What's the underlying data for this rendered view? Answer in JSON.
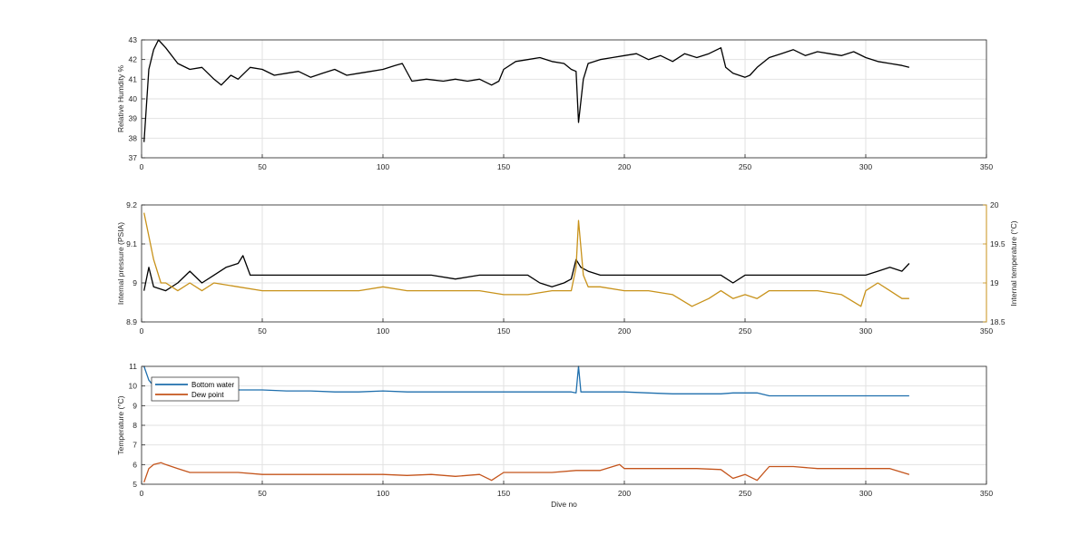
{
  "figure": {
    "xlabel": "Dive no",
    "xlim": [
      0,
      350
    ],
    "xticks": [
      0,
      50,
      100,
      150,
      200,
      250,
      300,
      350
    ]
  },
  "colors": {
    "black": "#000000",
    "gold": "#c8921a",
    "blue": "#1f6fad",
    "orange": "#c4541b",
    "grid": "#e2e2e2",
    "axis": "#262626"
  },
  "chart_data": [
    {
      "type": "line",
      "ylabel": "Relative Humdity %",
      "xlim": [
        0,
        350
      ],
      "ylim": [
        37,
        43
      ],
      "yticks": [
        37,
        38,
        39,
        40,
        41,
        42,
        43
      ],
      "grid": true,
      "series": [
        {
          "color": "#000000",
          "x": [
            1,
            3,
            5,
            7,
            10,
            15,
            20,
            25,
            30,
            33,
            37,
            40,
            45,
            50,
            55,
            60,
            65,
            70,
            75,
            80,
            85,
            90,
            95,
            100,
            105,
            108,
            112,
            118,
            125,
            130,
            135,
            140,
            145,
            148,
            150,
            155,
            160,
            165,
            170,
            175,
            178,
            180,
            181,
            183,
            185,
            190,
            195,
            200,
            205,
            210,
            215,
            220,
            225,
            230,
            235,
            240,
            242,
            245,
            250,
            252,
            255,
            260,
            265,
            270,
            275,
            280,
            285,
            290,
            295,
            300,
            305,
            310,
            315,
            318
          ],
          "y": [
            37.8,
            41.5,
            42.5,
            43.0,
            42.6,
            41.8,
            41.5,
            41.6,
            41.0,
            40.7,
            41.2,
            41.0,
            41.6,
            41.5,
            41.2,
            41.3,
            41.4,
            41.1,
            41.3,
            41.5,
            41.2,
            41.3,
            41.4,
            41.5,
            41.7,
            41.8,
            40.9,
            41.0,
            40.9,
            41.0,
            40.9,
            41.0,
            40.7,
            40.9,
            41.5,
            41.9,
            42.0,
            42.1,
            41.9,
            41.8,
            41.5,
            41.4,
            38.8,
            41.0,
            41.8,
            42.0,
            42.1,
            42.2,
            42.3,
            42.0,
            42.2,
            41.9,
            42.3,
            42.1,
            42.3,
            42.6,
            41.6,
            41.3,
            41.1,
            41.2,
            41.6,
            42.1,
            42.3,
            42.5,
            42.2,
            42.4,
            42.3,
            42.2,
            42.4,
            42.1,
            41.9,
            41.8,
            41.7,
            41.6
          ]
        }
      ]
    },
    {
      "type": "line",
      "ylabel": "Internal pressure (PSIA)",
      "ylabel_right": "Internal temperature (°C)",
      "xlim": [
        0,
        350
      ],
      "ylim": [
        8.9,
        9.2
      ],
      "yticks": [
        8.9,
        9.0,
        9.1,
        9.2
      ],
      "ytick_labels": [
        "8.9",
        "9",
        "9.1",
        "9.2"
      ],
      "ylim_right": [
        18.5,
        20
      ],
      "yticks_right": [
        18.5,
        19,
        19.5,
        20
      ],
      "grid": true,
      "series": [
        {
          "axis": "left",
          "color": "#000000",
          "x": [
            1,
            3,
            5,
            10,
            15,
            20,
            25,
            30,
            35,
            40,
            42,
            45,
            50,
            60,
            70,
            80,
            90,
            100,
            110,
            120,
            130,
            140,
            150,
            160,
            165,
            170,
            175,
            178,
            180,
            182,
            185,
            190,
            200,
            210,
            220,
            230,
            240,
            245,
            250,
            260,
            270,
            280,
            290,
            300,
            305,
            310,
            315,
            318
          ],
          "y": [
            8.98,
            9.04,
            8.99,
            8.98,
            9.0,
            9.03,
            9.0,
            9.02,
            9.04,
            9.05,
            9.07,
            9.02,
            9.02,
            9.02,
            9.02,
            9.02,
            9.02,
            9.02,
            9.02,
            9.02,
            9.01,
            9.02,
            9.02,
            9.02,
            9.0,
            8.99,
            9.0,
            9.01,
            9.06,
            9.04,
            9.03,
            9.02,
            9.02,
            9.02,
            9.02,
            9.02,
            9.02,
            9.0,
            9.02,
            9.02,
            9.02,
            9.02,
            9.02,
            9.02,
            9.03,
            9.04,
            9.03,
            9.05
          ]
        },
        {
          "axis": "right",
          "color": "#c8921a",
          "x": [
            1,
            3,
            5,
            8,
            10,
            15,
            20,
            25,
            30,
            40,
            50,
            60,
            70,
            80,
            90,
            100,
            110,
            120,
            130,
            140,
            150,
            160,
            170,
            178,
            180,
            181,
            183,
            185,
            190,
            200,
            210,
            220,
            228,
            235,
            240,
            245,
            250,
            255,
            260,
            270,
            280,
            290,
            298,
            300,
            305,
            310,
            315,
            318
          ],
          "y": [
            19.9,
            19.6,
            19.3,
            19.0,
            19.0,
            18.9,
            19.0,
            18.9,
            19.0,
            18.95,
            18.9,
            18.9,
            18.9,
            18.9,
            18.9,
            18.95,
            18.9,
            18.9,
            18.9,
            18.9,
            18.85,
            18.85,
            18.9,
            18.9,
            19.2,
            19.8,
            19.1,
            18.95,
            18.95,
            18.9,
            18.9,
            18.85,
            18.7,
            18.8,
            18.9,
            18.8,
            18.85,
            18.8,
            18.9,
            18.9,
            18.9,
            18.85,
            18.7,
            18.9,
            19.0,
            18.9,
            18.8,
            18.8
          ]
        }
      ]
    },
    {
      "type": "line",
      "ylabel": "Temperature (°C)",
      "xlabel": "Dive no",
      "xlim": [
        0,
        350
      ],
      "ylim": [
        5,
        11
      ],
      "yticks": [
        5,
        6,
        7,
        8,
        9,
        10,
        11
      ],
      "grid": true,
      "legend": "top-left",
      "series": [
        {
          "name": "Bottom water",
          "color": "#1f6fad",
          "x": [
            1,
            3,
            5,
            10,
            20,
            30,
            40,
            50,
            60,
            70,
            80,
            90,
            100,
            110,
            120,
            130,
            140,
            150,
            160,
            170,
            178,
            180,
            181,
            182,
            185,
            190,
            200,
            210,
            220,
            230,
            240,
            245,
            250,
            255,
            260,
            270,
            280,
            290,
            300,
            310,
            318
          ],
          "y": [
            11.0,
            10.3,
            10.0,
            9.9,
            9.8,
            9.8,
            9.8,
            9.8,
            9.75,
            9.75,
            9.7,
            9.7,
            9.75,
            9.7,
            9.7,
            9.7,
            9.7,
            9.7,
            9.7,
            9.7,
            9.7,
            9.65,
            11.0,
            9.7,
            9.7,
            9.7,
            9.7,
            9.65,
            9.6,
            9.6,
            9.6,
            9.65,
            9.65,
            9.65,
            9.5,
            9.5,
            9.5,
            9.5,
            9.5,
            9.5,
            9.5
          ]
        },
        {
          "name": "Dew point",
          "color": "#c4541b",
          "x": [
            1,
            3,
            5,
            8,
            10,
            15,
            20,
            30,
            40,
            50,
            60,
            70,
            80,
            90,
            100,
            110,
            120,
            130,
            140,
            145,
            150,
            160,
            170,
            180,
            190,
            198,
            200,
            210,
            220,
            230,
            240,
            245,
            250,
            255,
            260,
            270,
            280,
            290,
            300,
            310,
            318
          ],
          "y": [
            5.1,
            5.8,
            6.0,
            6.1,
            6.0,
            5.8,
            5.6,
            5.6,
            5.6,
            5.5,
            5.5,
            5.5,
            5.5,
            5.5,
            5.5,
            5.45,
            5.5,
            5.4,
            5.5,
            5.2,
            5.6,
            5.6,
            5.6,
            5.7,
            5.7,
            6.0,
            5.8,
            5.8,
            5.8,
            5.8,
            5.75,
            5.3,
            5.5,
            5.2,
            5.9,
            5.9,
            5.8,
            5.8,
            5.8,
            5.8,
            5.5
          ]
        }
      ]
    }
  ]
}
